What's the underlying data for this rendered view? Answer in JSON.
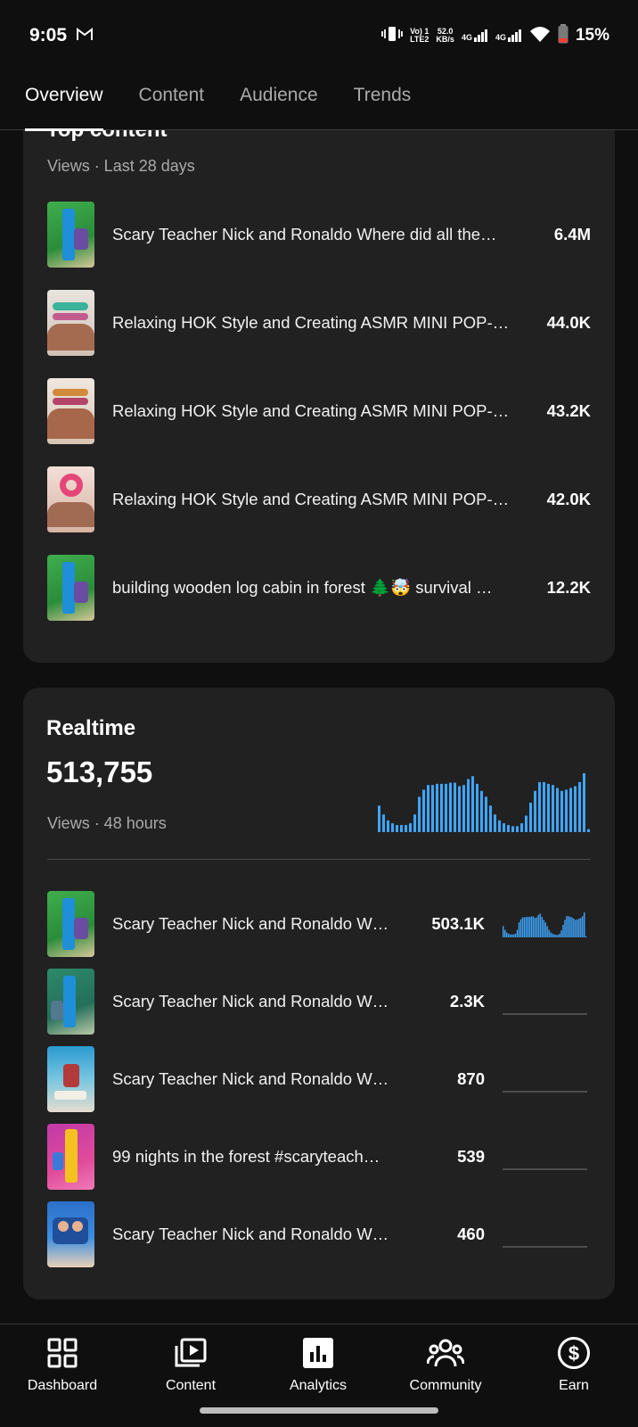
{
  "status_bar": {
    "time": "9:05",
    "network_line1": "Vo) 1",
    "network_line2": "LTE2",
    "speed_line1": "52.0",
    "speed_line2": "KB/s",
    "signal1_label": "4G",
    "signal2_label": "4G",
    "battery": "15%"
  },
  "tabs": [
    {
      "label": "Overview",
      "active": true
    },
    {
      "label": "Content",
      "active": false
    },
    {
      "label": "Audience",
      "active": false
    },
    {
      "label": "Trends",
      "active": false
    }
  ],
  "top_content": {
    "title": "Top content",
    "subtitle": "Views · Last 28 days",
    "items": [
      {
        "title": "Scary Teacher Nick and Ronaldo Where did all the…",
        "views": "6.4M"
      },
      {
        "title": "Relaxing HOK Style and Creating ASMR MINI POP-…",
        "views": "44.0K"
      },
      {
        "title": "Relaxing HOK Style and Creating ASMR MINI POP-…",
        "views": "43.2K"
      },
      {
        "title": "Relaxing HOK Style and Creating ASMR MINI POP-…",
        "views": "42.0K"
      },
      {
        "title": "building wooden log cabin in forest 🌲🤯 survival …",
        "views": "12.2K"
      }
    ]
  },
  "realtime": {
    "title": "Realtime",
    "total": "513,755",
    "subtitle": "Views · 48 hours",
    "accent_color": "#3ea6ff",
    "items": [
      {
        "title": "Scary Teacher Nick and Ronaldo W…",
        "views": "503.1K"
      },
      {
        "title": "Scary Teacher Nick and Ronaldo W…",
        "views": "2.3K"
      },
      {
        "title": "Scary Teacher Nick and Ronaldo W…",
        "views": "870"
      },
      {
        "title": "99 nights in the forest #scaryteach…",
        "views": "539"
      },
      {
        "title": "Scary Teacher Nick and Ronaldo W…",
        "views": "460"
      }
    ]
  },
  "bottom_nav": [
    {
      "label": "Dashboard",
      "icon": "dashboard-icon"
    },
    {
      "label": "Content",
      "icon": "content-icon"
    },
    {
      "label": "Analytics",
      "icon": "analytics-icon",
      "active": true
    },
    {
      "label": "Community",
      "icon": "community-icon"
    },
    {
      "label": "Earn",
      "icon": "earn-icon"
    }
  ]
}
